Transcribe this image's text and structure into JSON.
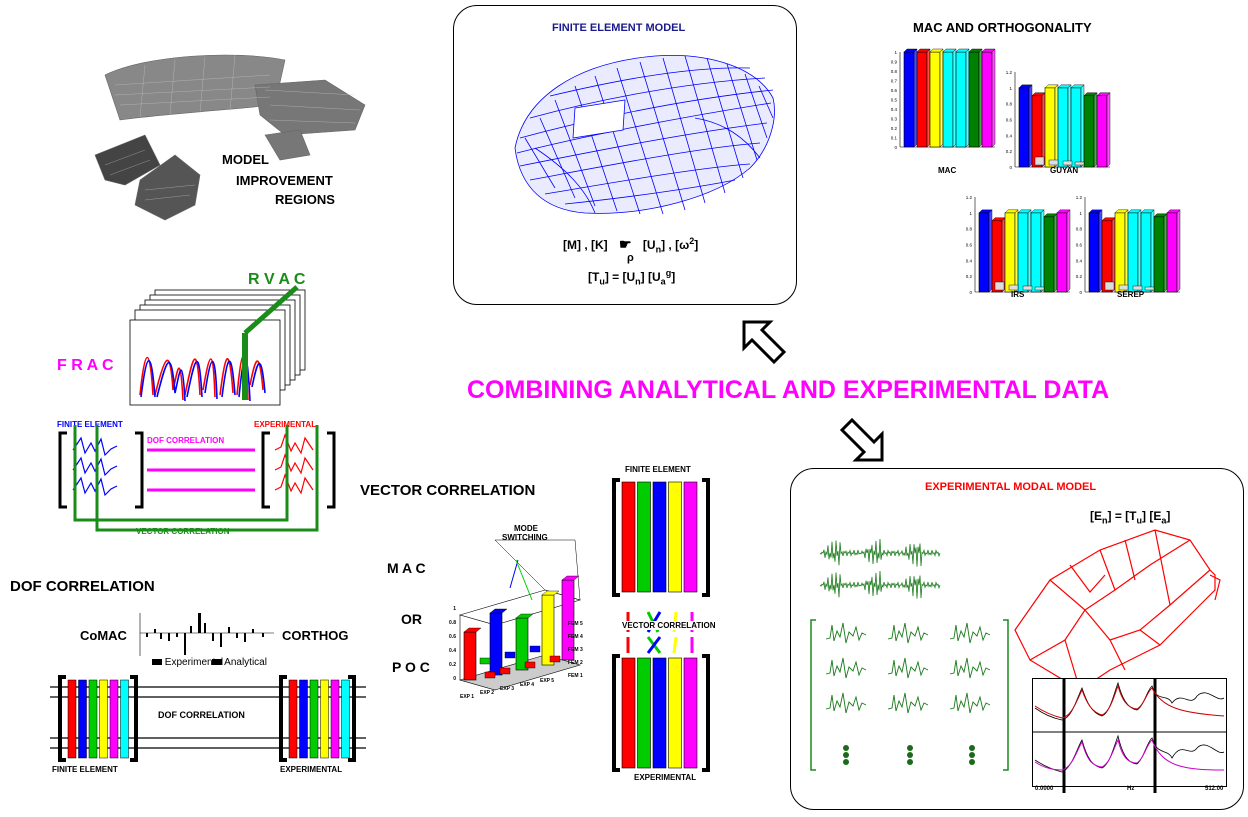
{
  "headline": "COMBINING ANALYTICAL AND EXPERIMENTAL DATA",
  "fe_model": {
    "title": "FINITE ELEMENT MODEL",
    "eq1": "[M] , [K]",
    "eq1b": "[U",
    "eq1b_sub": "n",
    "eq1c": "] , [",
    "eq1d": "2",
    "eq1e": "]",
    "eq2": "[T",
    "eq2_sub": "u",
    "eq2b": "] = [U",
    "eq2b_sub": "n",
    "eq2c": "] [U",
    "eq2c_sub": "a",
    "eq2c_sup": "g",
    "eq2d": "]"
  },
  "mac_orth": {
    "title": "MAC AND ORTHOGONALITY",
    "charts": [
      {
        "label": "MAC",
        "ticks": [
          "1",
          "0.9",
          "0.8",
          "0.7",
          "0.6",
          "0.5",
          "0.4",
          "0.3",
          "0.2",
          "0.1",
          "0"
        ]
      },
      {
        "label": "GUYAN",
        "ticks": [
          "1.2",
          "1",
          "0.8",
          "0.6",
          "0.4",
          "0.2",
          "0"
        ]
      },
      {
        "label": "IRS",
        "ticks": [
          "1.2",
          "1",
          "0.8",
          "0.6",
          "0.4",
          "0.2",
          "0"
        ]
      },
      {
        "label": "SEREP",
        "ticks": [
          "1.2",
          "1",
          "0.8",
          "0.6",
          "0.4",
          "0.2",
          "0"
        ]
      }
    ]
  },
  "mir": {
    "line1": "MODEL",
    "line2": "IMPROVEMENT",
    "line3": "REGIONS"
  },
  "rvac": "R V A C",
  "frac": "F R A C",
  "fe_label": "FINITE ELEMENT",
  "exp_label": "EXPERIMENTAL",
  "dof_corr_small": "DOF CORRELATION",
  "vec_corr_small": "VECTOR CORRELATION",
  "dof_corr_title": "DOF CORRELATION",
  "comac": "CoMAC",
  "corthog": "CORTHOG",
  "legend_exp": "Experimental",
  "legend_ana": "Analytical",
  "dof_corr_center": "DOF CORRELATION",
  "fe_bottom": "FINITE ELEMENT",
  "exp_bottom": "EXPERIMENTAL",
  "vec_corr_title": "VECTOR CORRELATION",
  "mac": "M A C",
  "or": "OR",
  "poc": "P O C",
  "mode_switch_1": "MODE",
  "mode_switch_2": "SWITCHING",
  "mac3d_yticks": [
    "1",
    "0.8",
    "0.6",
    "0.4",
    "0.2",
    "0"
  ],
  "mac3d_exp": [
    "EXP 1",
    "EXP 2",
    "EXP 3",
    "EXP 4",
    "EXP 5"
  ],
  "mac3d_fem": [
    "FEM 1",
    "FEM 2",
    "FEM 3",
    "FEM 4",
    "FEM 5"
  ],
  "vc_fe": "FINITE ELEMENT",
  "vc_mid": "VECTOR CORRELATION",
  "vc_exp": "EXPERIMENTAL",
  "emm": {
    "title": "EXPERIMENTAL MODAL MODEL",
    "eq": "[E",
    "eq_sub": "n",
    "eq2": "] = [T",
    "eq2_sub": "u",
    "eq3": "] [E",
    "eq3_sub": "a",
    "eq4": "]",
    "frf_x0": "0.0000",
    "frf_xunit": "Hz",
    "frf_x1": "512.00"
  },
  "colors": {
    "red": "#ff0000",
    "blue": "#0000ff",
    "green": "#00cc00",
    "yellow": "#ffff00",
    "cyan": "#00ffff",
    "darkgreen": "#008000",
    "magenta": "#ff00ff",
    "navy": "#000080"
  }
}
